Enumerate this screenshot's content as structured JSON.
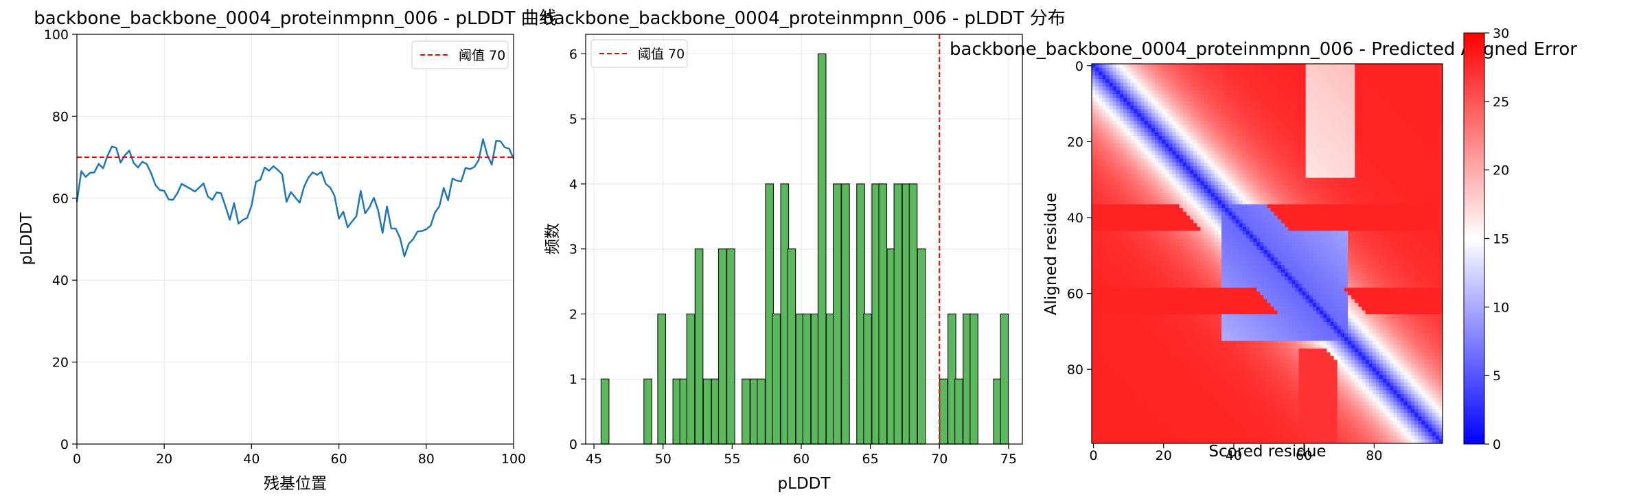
{
  "chart_data": [
    {
      "type": "line",
      "title": "backbone_backbone_0004_proteinmpnn_006 - pLDDT 曲线",
      "xlabel": "残基位置",
      "ylabel": "pLDDT",
      "xlim": [
        0,
        100
      ],
      "ylim": [
        0,
        100
      ],
      "xticks": [
        0,
        20,
        40,
        60,
        80,
        100
      ],
      "yticks": [
        0,
        20,
        40,
        60,
        80,
        100
      ],
      "grid": true,
      "legend": "top-right",
      "series": [
        {
          "name": "",
          "color": "#1f77b4",
          "x": [
            0,
            1,
            2,
            3,
            4,
            5,
            6,
            7,
            8,
            9,
            10,
            11,
            12,
            13,
            14,
            15,
            16,
            17,
            18,
            19,
            20,
            21,
            22,
            23,
            24,
            25,
            26,
            27,
            28,
            29,
            30,
            31,
            32,
            33,
            34,
            35,
            36,
            37,
            38,
            39,
            40,
            41,
            42,
            43,
            44,
            45,
            46,
            47,
            48,
            49,
            50,
            51,
            52,
            53,
            54,
            55,
            56,
            57,
            58,
            59,
            60,
            61,
            62,
            63,
            64,
            65,
            66,
            67,
            68,
            69,
            70,
            71,
            72,
            73,
            74,
            75,
            76,
            77,
            78,
            79,
            80,
            81,
            82,
            83,
            84,
            85,
            86,
            87,
            88,
            89,
            90,
            91,
            92,
            93,
            94,
            95,
            96,
            97,
            98,
            99,
            100
          ],
          "y": [
            59.1,
            66.6,
            65.2,
            66.2,
            66.3,
            68.4,
            67.3,
            70.3,
            72.6,
            72.3,
            68.7,
            70.5,
            71.6,
            68.6,
            67.5,
            68.9,
            68.3,
            66.1,
            63.2,
            62.0,
            61.8,
            59.7,
            59.6,
            61.2,
            63.5,
            62.9,
            62.3,
            61.6,
            62.6,
            63.6,
            60.4,
            59.6,
            61.4,
            61.2,
            58.1,
            54.7,
            58.8,
            53.8,
            54.7,
            55.2,
            58.2,
            64.0,
            64.5,
            67.5,
            66.7,
            67.8,
            66.9,
            65.9,
            59.1,
            61.5,
            60.2,
            58.9,
            62.7,
            65.0,
            66.3,
            65.7,
            66.4,
            63.5,
            62.6,
            60.6,
            55.0,
            56.7,
            52.9,
            54.3,
            55.6,
            61.8,
            56.3,
            57.8,
            60.1,
            57.0,
            51.5,
            58.0,
            52.6,
            52.6,
            50.3,
            45.8,
            48.9,
            50.0,
            51.9,
            52.0,
            52.4,
            53.3,
            56.5,
            58.0,
            62.5,
            59.5,
            64.8,
            64.3,
            64.1,
            67.4,
            67.1,
            67.6,
            69.3,
            74.4,
            70.5,
            68.2,
            74.0,
            73.9,
            72.4,
            72.1,
            69.6
          ]
        }
      ],
      "hline": {
        "y": 70,
        "color": "#ff0000",
        "label": "阈值 70"
      }
    },
    {
      "type": "bar",
      "title": "backbone_backbone_0004_proteinmpnn_006 - pLDDT 分布",
      "xlabel": "pLDDT",
      "ylabel": "频数",
      "xlim": [
        44.4,
        76.0
      ],
      "ylim": [
        0,
        6.3
      ],
      "xticks": [
        45,
        50,
        55,
        60,
        65,
        70,
        75
      ],
      "yticks": [
        0,
        1,
        2,
        3,
        4,
        5,
        6
      ],
      "grid": true,
      "legend": "top-left",
      "bar_color": "#5cb85c",
      "bin_width": 0.57,
      "bins": [
        {
          "x": 45.8,
          "count": 1
        },
        {
          "x": 48.9,
          "count": 1
        },
        {
          "x": 49.9,
          "count": 2
        },
        {
          "x": 51.0,
          "count": 1
        },
        {
          "x": 51.5,
          "count": 1
        },
        {
          "x": 52.0,
          "count": 2
        },
        {
          "x": 52.6,
          "count": 3
        },
        {
          "x": 53.2,
          "count": 1
        },
        {
          "x": 53.8,
          "count": 1
        },
        {
          "x": 54.3,
          "count": 3
        },
        {
          "x": 54.9,
          "count": 3
        },
        {
          "x": 56.0,
          "count": 1
        },
        {
          "x": 56.6,
          "count": 1
        },
        {
          "x": 57.1,
          "count": 1
        },
        {
          "x": 57.7,
          "count": 4
        },
        {
          "x": 58.2,
          "count": 2
        },
        {
          "x": 58.8,
          "count": 4
        },
        {
          "x": 59.3,
          "count": 3
        },
        {
          "x": 59.9,
          "count": 2
        },
        {
          "x": 60.4,
          "count": 2
        },
        {
          "x": 61.0,
          "count": 2
        },
        {
          "x": 61.5,
          "count": 6
        },
        {
          "x": 62.1,
          "count": 2
        },
        {
          "x": 62.6,
          "count": 4
        },
        {
          "x": 63.2,
          "count": 4
        },
        {
          "x": 64.3,
          "count": 4
        },
        {
          "x": 64.8,
          "count": 2
        },
        {
          "x": 65.4,
          "count": 4
        },
        {
          "x": 65.9,
          "count": 4
        },
        {
          "x": 66.5,
          "count": 3
        },
        {
          "x": 67.0,
          "count": 4
        },
        {
          "x": 67.6,
          "count": 4
        },
        {
          "x": 68.1,
          "count": 4
        },
        {
          "x": 68.7,
          "count": 3
        },
        {
          "x": 70.3,
          "count": 1
        },
        {
          "x": 70.9,
          "count": 2
        },
        {
          "x": 71.4,
          "count": 1
        },
        {
          "x": 72.0,
          "count": 2
        },
        {
          "x": 72.5,
          "count": 2
        },
        {
          "x": 74.2,
          "count": 1
        },
        {
          "x": 74.7,
          "count": 2
        }
      ],
      "vline": {
        "x": 70,
        "color": "#ff0000",
        "label": "阈值 70"
      }
    },
    {
      "type": "heatmap",
      "title": "backbone_backbone_0004_proteinmpnn_006 - Predicted Aligned Error",
      "xlabel": "Scored residue",
      "ylabel": "Aligned residue",
      "n_residues": 100,
      "xticks": [
        0,
        20,
        40,
        60,
        80
      ],
      "yticks": [
        0,
        20,
        40,
        60,
        80
      ],
      "colormap": "bwr",
      "colors": [
        "#0000ff",
        "#ffffff",
        "#ff0000"
      ],
      "vmin": 0,
      "vmax": 30,
      "colorbar_ticks": [
        0,
        5,
        10,
        15,
        20,
        25,
        30
      ],
      "low_error_blocks": [
        {
          "from": 37,
          "to": 72,
          "center": 53,
          "value": 6
        }
      ],
      "features": "low error (blue) along the diagonal widening into a block between residues ~37 and ~72; high error (red) bands near residues 40 and 62 and in the lower-left / upper-right corners"
    }
  ]
}
